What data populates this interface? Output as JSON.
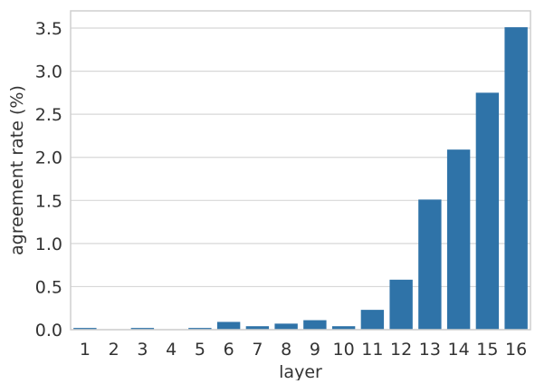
{
  "chart_data": {
    "type": "bar",
    "title": "",
    "xlabel": "layer",
    "ylabel": "agreement rate (%)",
    "categories": [
      "1",
      "2",
      "3",
      "4",
      "5",
      "6",
      "7",
      "8",
      "9",
      "10",
      "11",
      "12",
      "13",
      "14",
      "15",
      "16"
    ],
    "values": [
      0.02,
      0.005,
      0.02,
      0.005,
      0.02,
      0.09,
      0.04,
      0.07,
      0.11,
      0.04,
      0.23,
      0.58,
      1.51,
      2.09,
      2.75,
      3.51
    ],
    "ylim": [
      0,
      3.7
    ],
    "yticks": [
      "0.0",
      "0.5",
      "1.0",
      "1.5",
      "2.0",
      "2.5",
      "3.0",
      "3.5"
    ],
    "grid": true,
    "bar_color": "#2f73a8",
    "grid_color": "#d7d7d7",
    "frame_color": "#cfcfcf"
  }
}
